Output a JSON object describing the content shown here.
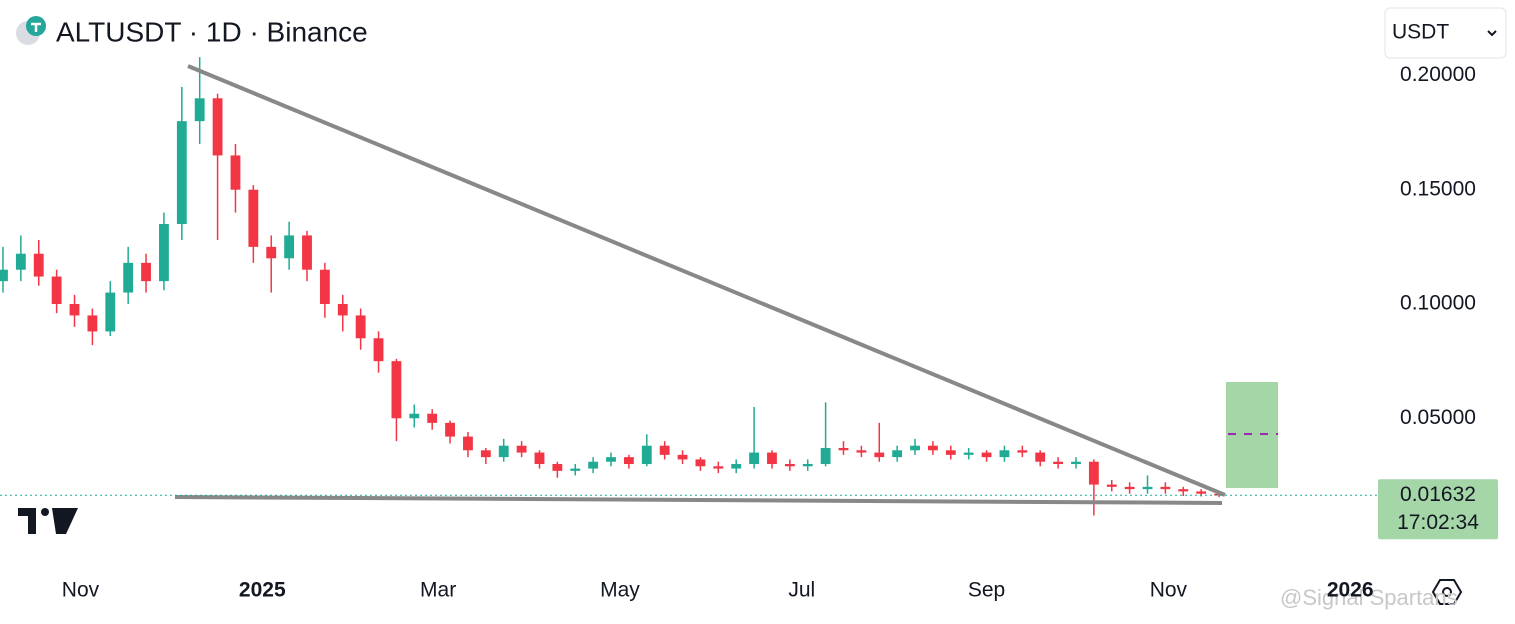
{
  "chart_data": {
    "type": "candlestick",
    "title": "ALTUSDT · 1D · Binance",
    "currency": "USDT",
    "up_color": "#22ab94",
    "down_color": "#f23645",
    "xlim": [
      -27,
      436
    ],
    "ylim": [
      -0.012,
      0.233
    ],
    "xticks": [
      {
        "value": 0,
        "label": "Nov"
      },
      {
        "value": 61,
        "label": "2025"
      },
      {
        "value": 120,
        "label": "Mar"
      },
      {
        "value": 181,
        "label": "May"
      },
      {
        "value": 242,
        "label": "Jul"
      },
      {
        "value": 304,
        "label": "Sep"
      },
      {
        "value": 365,
        "label": "Nov"
      },
      {
        "value": 426,
        "label": "2026"
      }
    ],
    "yticks": [
      {
        "value": 0.2,
        "label": "0.20000"
      },
      {
        "value": 0.15,
        "label": "0.15000"
      },
      {
        "value": 0.1,
        "label": "0.10000"
      },
      {
        "value": 0.05,
        "label": "0.05000"
      }
    ],
    "x": [
      -26,
      -20,
      -14,
      -8,
      -2,
      4,
      10,
      16,
      22,
      28,
      34,
      40,
      46,
      52,
      58,
      64,
      70,
      76,
      82,
      88,
      94,
      100,
      106,
      112,
      118,
      124,
      130,
      136,
      142,
      148,
      154,
      160,
      166,
      172,
      178,
      184,
      190,
      196,
      202,
      208,
      214,
      220,
      226,
      232,
      238,
      244,
      250,
      256,
      262,
      268,
      274,
      280,
      286,
      292,
      298,
      304,
      310,
      316,
      322,
      328,
      334,
      340,
      346,
      352,
      358,
      364,
      370,
      376,
      382
    ],
    "open": [
      0.11,
      0.115,
      0.122,
      0.112,
      0.1,
      0.095,
      0.088,
      0.105,
      0.118,
      0.11,
      0.135,
      0.18,
      0.19,
      0.165,
      0.15,
      0.125,
      0.12,
      0.13,
      0.115,
      0.1,
      0.095,
      0.085,
      0.075,
      0.05,
      0.052,
      0.048,
      0.042,
      0.036,
      0.033,
      0.038,
      0.035,
      0.03,
      0.027,
      0.028,
      0.031,
      0.033,
      0.03,
      0.038,
      0.034,
      0.032,
      0.029,
      0.028,
      0.03,
      0.035,
      0.03,
      0.029,
      0.03,
      0.037,
      0.036,
      0.035,
      0.033,
      0.036,
      0.038,
      0.036,
      0.034,
      0.035,
      0.033,
      0.036,
      0.035,
      0.031,
      0.03,
      0.031,
      0.021,
      0.02,
      0.019,
      0.02,
      0.019,
      0.018,
      0.017
    ],
    "high": [
      0.125,
      0.13,
      0.128,
      0.115,
      0.104,
      0.098,
      0.11,
      0.125,
      0.122,
      0.14,
      0.195,
      0.208,
      0.192,
      0.17,
      0.152,
      0.13,
      0.136,
      0.132,
      0.118,
      0.104,
      0.098,
      0.088,
      0.076,
      0.056,
      0.054,
      0.049,
      0.044,
      0.037,
      0.041,
      0.04,
      0.036,
      0.031,
      0.03,
      0.033,
      0.035,
      0.034,
      0.043,
      0.04,
      0.036,
      0.033,
      0.031,
      0.032,
      0.055,
      0.036,
      0.032,
      0.032,
      0.057,
      0.04,
      0.038,
      0.048,
      0.038,
      0.041,
      0.04,
      0.038,
      0.037,
      0.036,
      0.038,
      0.038,
      0.036,
      0.033,
      0.033,
      0.032,
      0.023,
      0.022,
      0.025,
      0.022,
      0.02,
      0.019,
      0.018
    ],
    "low": [
      0.105,
      0.11,
      0.108,
      0.096,
      0.09,
      0.082,
      0.086,
      0.1,
      0.105,
      0.106,
      0.128,
      0.17,
      0.128,
      0.14,
      0.118,
      0.105,
      0.115,
      0.11,
      0.094,
      0.088,
      0.08,
      0.07,
      0.04,
      0.046,
      0.045,
      0.039,
      0.033,
      0.03,
      0.031,
      0.033,
      0.028,
      0.024,
      0.025,
      0.026,
      0.029,
      0.028,
      0.029,
      0.032,
      0.03,
      0.027,
      0.026,
      0.026,
      0.028,
      0.028,
      0.027,
      0.027,
      0.029,
      0.034,
      0.033,
      0.031,
      0.031,
      0.034,
      0.034,
      0.032,
      0.032,
      0.031,
      0.031,
      0.033,
      0.029,
      0.028,
      0.028,
      0.0075,
      0.018,
      0.017,
      0.017,
      0.017,
      0.016,
      0.0158,
      0.0155
    ],
    "close": [
      0.115,
      0.122,
      0.112,
      0.1,
      0.095,
      0.088,
      0.105,
      0.118,
      0.11,
      0.135,
      0.18,
      0.19,
      0.165,
      0.15,
      0.125,
      0.12,
      0.13,
      0.115,
      0.1,
      0.095,
      0.085,
      0.075,
      0.05,
      0.052,
      0.048,
      0.042,
      0.036,
      0.033,
      0.038,
      0.035,
      0.03,
      0.027,
      0.028,
      0.031,
      0.033,
      0.03,
      0.038,
      0.034,
      0.032,
      0.029,
      0.028,
      0.03,
      0.035,
      0.03,
      0.029,
      0.03,
      0.037,
      0.036,
      0.035,
      0.033,
      0.036,
      0.038,
      0.036,
      0.034,
      0.035,
      0.033,
      0.036,
      0.035,
      0.031,
      0.03,
      0.031,
      0.021,
      0.02,
      0.019,
      0.02,
      0.019,
      0.018,
      0.017,
      0.01632
    ],
    "last_price": 0.01632,
    "countdown": "17:02:34",
    "watermark": "@Signal Spartans"
  }
}
